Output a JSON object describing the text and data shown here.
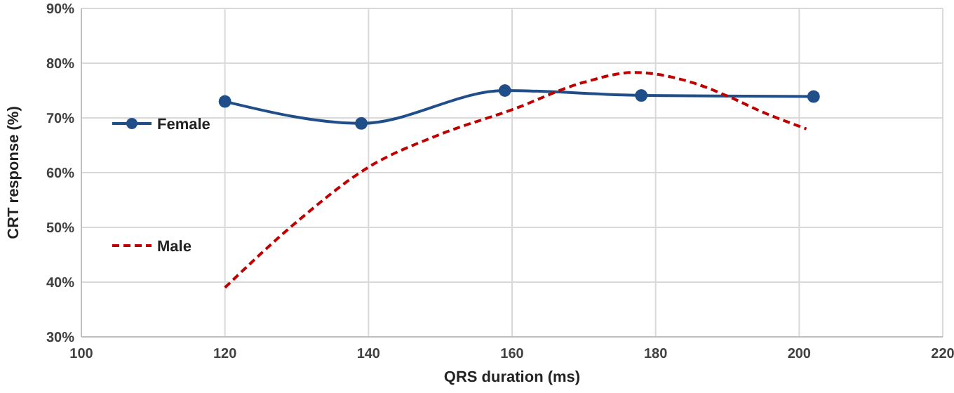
{
  "chart_data": {
    "type": "line",
    "xlabel": "QRS duration (ms)",
    "ylabel": "CRT response (%)",
    "xlim": [
      100,
      220
    ],
    "xticks": [
      100,
      120,
      140,
      160,
      180,
      200,
      220
    ],
    "ylim": [
      30,
      90
    ],
    "yticks": [
      {
        "value": 30,
        "label": "30%"
      },
      {
        "value": 40,
        "label": "40%"
      },
      {
        "value": 50,
        "label": "50%"
      },
      {
        "value": 60,
        "label": "60%"
      },
      {
        "value": 70,
        "label": "70%"
      },
      {
        "value": 80,
        "label": "80%"
      },
      {
        "value": 90,
        "label": "90%"
      }
    ],
    "grid": true,
    "legend": "left",
    "series": [
      {
        "name": "Female",
        "color": "#1f4e89",
        "marker": "circle",
        "line_style": "solid",
        "x": [
          120,
          139,
          159,
          178,
          202
        ],
        "values": [
          73,
          69,
          75,
          74.1,
          73.9
        ]
      },
      {
        "name": "Male",
        "color": "#c00000",
        "marker": "none",
        "line_style": "dashed",
        "x": [
          120,
          130,
          140,
          150,
          160,
          170,
          177,
          185,
          190,
          195,
          201
        ],
        "values": [
          39,
          51,
          61,
          67,
          71.5,
          76.5,
          78.3,
          76.5,
          74,
          71,
          68
        ]
      }
    ]
  }
}
